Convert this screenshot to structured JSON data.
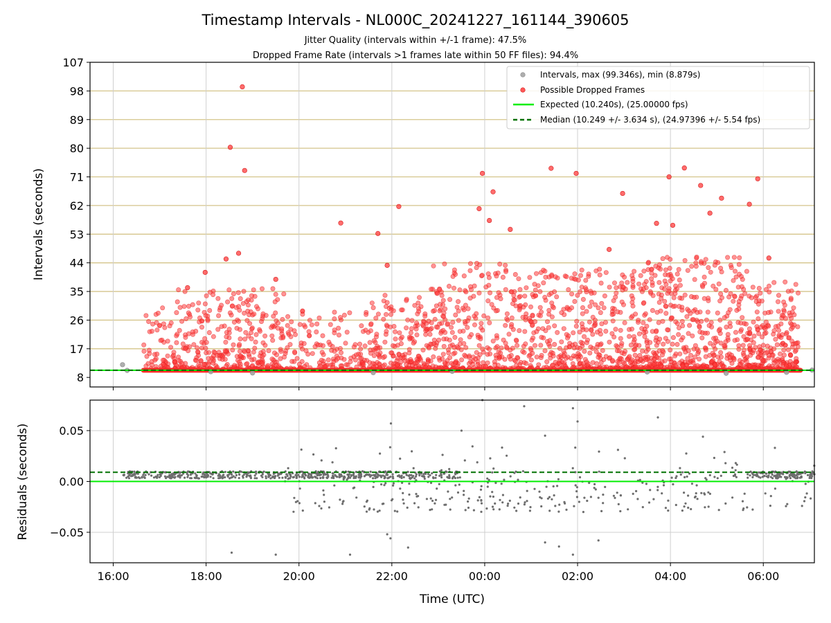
{
  "chart_data": [
    {
      "type": "scatter",
      "title": "Timestamp Intervals - NL000C_20241227_161144_390605",
      "subtitle_lines": [
        "Jitter Quality (intervals within +/-1 frame): 47.5%",
        "Dropped Frame Rate (intervals >1 frames late within 50 FF files): 94.4%"
      ],
      "xlabel": "",
      "ylabel": "Intervals (seconds)",
      "x_range_hours": [
        15.5,
        31.1
      ],
      "ylim": [
        5,
        107
      ],
      "y_ticks": [
        "8",
        "17",
        "26",
        "35",
        "44",
        "53",
        "62",
        "71",
        "80",
        "89",
        "98",
        "107"
      ],
      "y_tick_values": [
        8,
        17,
        26,
        35,
        44,
        53,
        62,
        71,
        80,
        89,
        98,
        107
      ],
      "frame_grid_color": "#d4c48a",
      "grid": true,
      "legend_placement": "top-right",
      "legend": [
        {
          "label": "Intervals, max (99.346s), min (8.879s)",
          "kind": "dot",
          "color": "#a0a0a0"
        },
        {
          "label": "Possible Dropped Frames",
          "kind": "dot",
          "color": "#ff3b3b"
        },
        {
          "label": "Expected (10.240s), (25.00000 fps)",
          "kind": "line",
          "color": "#00ee00"
        },
        {
          "label": "Median (10.249 +/- 3.634 s), (24.97396 +/- 5.54 fps)",
          "kind": "dashed",
          "color": "#007000"
        }
      ],
      "expected_value": 10.24,
      "median_value": 10.249,
      "baseline_band": {
        "y": 10.24,
        "x_start": 16.65,
        "x_end": 30.8
      },
      "normal_points": [
        {
          "x": 16.2,
          "y": 12.0
        },
        {
          "x": 16.3,
          "y": 10.2
        },
        {
          "x": 18.1,
          "y": 9.8
        },
        {
          "x": 19.0,
          "y": 9.4
        },
        {
          "x": 21.6,
          "y": 9.5
        },
        {
          "x": 23.3,
          "y": 9.9
        },
        {
          "x": 27.5,
          "y": 9.7
        },
        {
          "x": 29.2,
          "y": 9.3
        },
        {
          "x": 30.5,
          "y": 9.6
        },
        {
          "x": 31.05,
          "y": 10.3
        }
      ],
      "dropped_outliers": [
        {
          "x": 18.78,
          "y": 99.3
        },
        {
          "x": 18.52,
          "y": 80.3
        },
        {
          "x": 18.83,
          "y": 73.0
        },
        {
          "x": 18.7,
          "y": 47.0
        },
        {
          "x": 18.43,
          "y": 45.2
        },
        {
          "x": 17.98,
          "y": 41.0
        },
        {
          "x": 19.5,
          "y": 38.8
        },
        {
          "x": 17.6,
          "y": 36.2
        },
        {
          "x": 20.9,
          "y": 56.5
        },
        {
          "x": 21.7,
          "y": 53.2
        },
        {
          "x": 22.15,
          "y": 61.7
        },
        {
          "x": 21.9,
          "y": 43.2
        },
        {
          "x": 23.88,
          "y": 61.0
        },
        {
          "x": 24.1,
          "y": 57.3
        },
        {
          "x": 23.95,
          "y": 72.1
        },
        {
          "x": 24.18,
          "y": 66.3
        },
        {
          "x": 24.55,
          "y": 54.5
        },
        {
          "x": 25.43,
          "y": 73.7
        },
        {
          "x": 25.97,
          "y": 72.1
        },
        {
          "x": 26.68,
          "y": 48.2
        },
        {
          "x": 26.97,
          "y": 65.8
        },
        {
          "x": 27.7,
          "y": 56.4
        },
        {
          "x": 27.97,
          "y": 71.0
        },
        {
          "x": 28.05,
          "y": 55.8
        },
        {
          "x": 28.3,
          "y": 73.8
        },
        {
          "x": 28.65,
          "y": 68.3
        },
        {
          "x": 28.85,
          "y": 59.6
        },
        {
          "x": 29.1,
          "y": 64.3
        },
        {
          "x": 29.7,
          "y": 62.4
        },
        {
          "x": 29.88,
          "y": 70.4
        },
        {
          "x": 30.12,
          "y": 45.5
        }
      ],
      "dropped_segments": [
        {
          "x0": 16.65,
          "x1": 17.3,
          "n": 55,
          "ymax": 30
        },
        {
          "x0": 17.3,
          "x1": 19.7,
          "n": 340,
          "ymax": 36
        },
        {
          "x0": 19.7,
          "x1": 21.5,
          "n": 150,
          "ymax": 30
        },
        {
          "x0": 21.5,
          "x1": 22.8,
          "n": 200,
          "ymax": 34
        },
        {
          "x0": 22.8,
          "x1": 24.8,
          "n": 320,
          "ymax": 44
        },
        {
          "x0": 24.8,
          "x1": 27.3,
          "n": 420,
          "ymax": 42
        },
        {
          "x0": 27.3,
          "x1": 29.7,
          "n": 480,
          "ymax": 46
        },
        {
          "x0": 29.7,
          "x1": 30.75,
          "n": 230,
          "ymax": 38
        }
      ]
    },
    {
      "type": "scatter",
      "title": "",
      "xlabel": "Time (UTC)",
      "ylabel": "Residuals (seconds)",
      "x_range_hours": [
        15.5,
        31.1
      ],
      "ylim": [
        -0.08,
        0.08
      ],
      "y_ticks": [
        "0.05",
        "0.00",
        "−0.05"
      ],
      "y_tick_values": [
        0.05,
        0.0,
        -0.05
      ],
      "x_ticks": [
        "16:00",
        "18:00",
        "20:00",
        "22:00",
        "00:00",
        "02:00",
        "04:00",
        "06:00"
      ],
      "x_tick_values": [
        16,
        18,
        20,
        22,
        24,
        26,
        28,
        30
      ],
      "grid": true,
      "expected_value": 0.0,
      "median_value": 0.009,
      "point_color": "#6e6e6e",
      "outliers": [
        {
          "x": 18.55,
          "y": -0.07
        },
        {
          "x": 19.5,
          "y": -0.072
        },
        {
          "x": 21.1,
          "y": -0.072
        },
        {
          "x": 21.9,
          "y": -0.052
        },
        {
          "x": 21.97,
          "y": -0.056
        },
        {
          "x": 22.35,
          "y": -0.065
        },
        {
          "x": 21.98,
          "y": 0.057
        },
        {
          "x": 26.45,
          "y": -0.058
        },
        {
          "x": 26.0,
          "y": 0.059
        },
        {
          "x": 25.9,
          "y": 0.072
        },
        {
          "x": 25.3,
          "y": 0.045
        },
        {
          "x": 24.85,
          "y": 0.074
        },
        {
          "x": 27.73,
          "y": 0.063
        },
        {
          "x": 25.9,
          "y": -0.072
        },
        {
          "x": 25.6,
          "y": -0.064
        },
        {
          "x": 25.3,
          "y": -0.06
        },
        {
          "x": 23.95,
          "y": 0.08
        },
        {
          "x": 28.7,
          "y": 0.044
        },
        {
          "x": 30.25,
          "y": 0.033
        },
        {
          "x": 23.5,
          "y": 0.05
        }
      ],
      "segments": [
        {
          "x0": 16.2,
          "x1": 19.7,
          "dense": 1.0,
          "n": 260
        },
        {
          "x0": 19.7,
          "x1": 22.0,
          "dense": 0.8,
          "n": 260
        },
        {
          "x0": 22.0,
          "x1": 23.5,
          "dense": 0.6,
          "n": 130
        },
        {
          "x0": 23.5,
          "x1": 28.0,
          "dense": 0.0,
          "n": 140
        },
        {
          "x0": 28.0,
          "x1": 29.7,
          "dense": 0.2,
          "n": 60
        },
        {
          "x0": 29.7,
          "x1": 31.1,
          "dense": 0.9,
          "n": 150
        }
      ]
    }
  ]
}
